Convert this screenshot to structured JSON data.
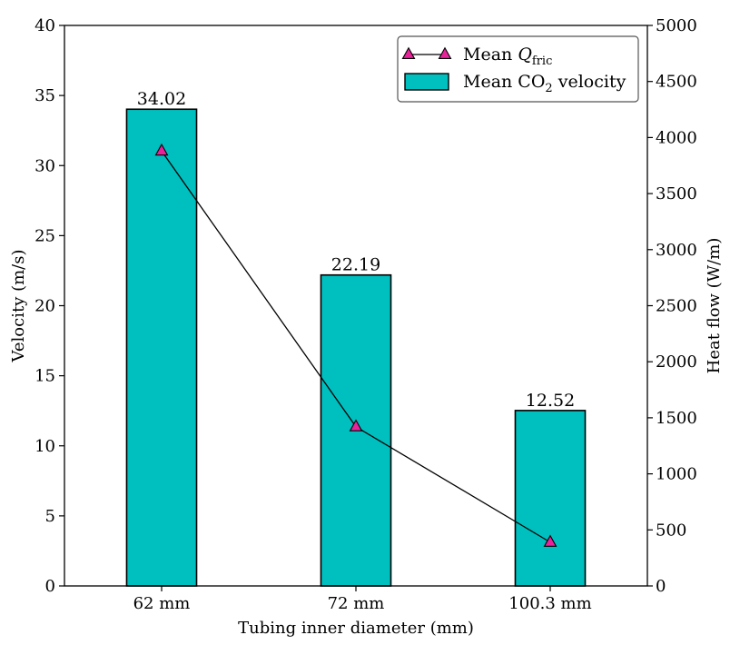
{
  "chart_data": {
    "type": "bar+line",
    "categories": [
      "62 mm",
      "72 mm",
      "100.3 mm"
    ],
    "xlabel": "Tubing inner diameter (mm)",
    "bar_series": {
      "name": "Mean CO2 velocity",
      "values": [
        34.02,
        22.19,
        12.52
      ],
      "value_labels": [
        "34.02",
        "22.19",
        "12.52"
      ],
      "color": "#00bfbf",
      "axis": "left"
    },
    "line_series": {
      "name": "Mean Q_fric",
      "values": [
        3880,
        1420,
        390
      ],
      "marker": "triangle",
      "marker_color": "#e8239a",
      "line_color": "#000000",
      "axis": "right"
    },
    "left_axis": {
      "label": "Velocity (m/s)",
      "ylim": [
        0,
        40
      ],
      "ticks": [
        0,
        5,
        10,
        15,
        20,
        25,
        30,
        35,
        40
      ]
    },
    "right_axis": {
      "label": "Heat flow (W/m)",
      "ylim": [
        0,
        5000
      ],
      "ticks": [
        0,
        500,
        1000,
        1500,
        2000,
        2500,
        3000,
        3500,
        4000,
        4500,
        5000
      ]
    },
    "legend": {
      "position": "top-right",
      "entries": [
        {
          "prefix": "Mean ",
          "symbol": "Q",
          "subscript": "fric",
          "suffix": ""
        },
        {
          "prefix": "Mean CO",
          "symbol": "",
          "subscript": "2",
          "suffix": " velocity"
        }
      ]
    },
    "grid": false
  }
}
